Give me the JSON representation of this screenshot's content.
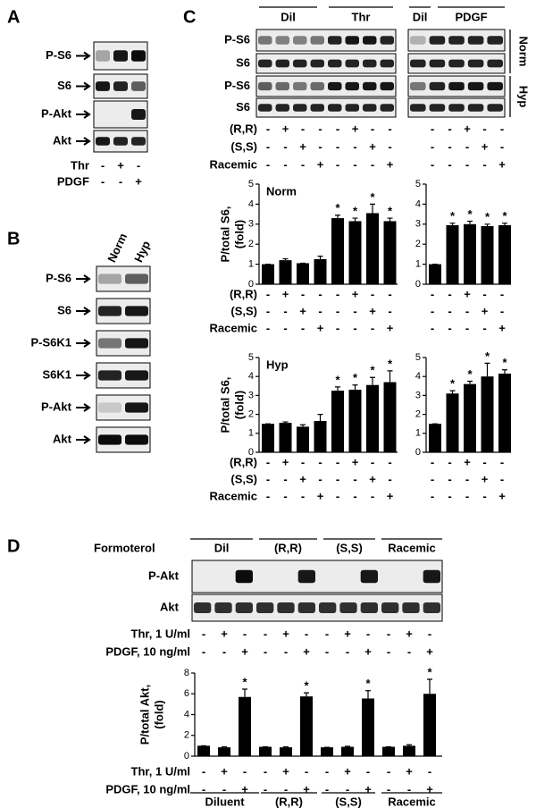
{
  "panel_a": {
    "letter": "A",
    "rows": [
      "P-S6",
      "S6",
      "P-Akt",
      "Akt"
    ],
    "treatments": [
      {
        "label": "Thr",
        "signs": [
          "-",
          "+",
          "-"
        ]
      },
      {
        "label": "PDGF",
        "signs": [
          "-",
          "-",
          "+"
        ]
      }
    ]
  },
  "panel_b": {
    "letter": "B",
    "columns": [
      "Norm",
      "Hyp"
    ],
    "rows": [
      "P-S6",
      "S6",
      "P-S6K1",
      "S6K1",
      "P-Akt",
      "Akt"
    ]
  },
  "panel_c": {
    "letter": "C",
    "groups": [
      "Dil",
      "Thr",
      "Dil",
      "PDGF"
    ],
    "rows": [
      "P-S6",
      "S6",
      "P-S6",
      "S6"
    ],
    "conditions": [
      "Norm",
      "Hyp"
    ],
    "sign_tables": [
      [
        {
          "label": "(R,R)",
          "signs": [
            "-",
            "+",
            "-",
            "-",
            "-",
            "+",
            "-",
            "-",
            "-",
            "-",
            "+",
            "-",
            "-"
          ]
        },
        {
          "label": "(S,S)",
          "signs": [
            "-",
            "-",
            "+",
            "-",
            "-",
            "-",
            "+",
            "-",
            "-",
            "-",
            "-",
            "+",
            "-"
          ]
        },
        {
          "label": "Racemic",
          "signs": [
            "-",
            "-",
            "-",
            "+",
            "-",
            "-",
            "-",
            "+",
            "-",
            "-",
            "-",
            "-",
            "+"
          ]
        }
      ],
      [
        {
          "label": "(R,R)",
          "signs": [
            "-",
            "+",
            "-",
            "-",
            "-",
            "+",
            "-",
            "-",
            "-",
            "-",
            "+",
            "-",
            "-"
          ]
        },
        {
          "label": "(S,S)",
          "signs": [
            "-",
            "-",
            "+",
            "-",
            "-",
            "-",
            "+",
            "-",
            "-",
            "-",
            "-",
            "+",
            "-"
          ]
        },
        {
          "label": "Racemic",
          "signs": [
            "-",
            "-",
            "-",
            "+",
            "-",
            "-",
            "-",
            "+",
            "-",
            "-",
            "-",
            "-",
            "+"
          ]
        }
      ],
      [
        {
          "label": "(R,R)",
          "signs": [
            "-",
            "+",
            "-",
            "-",
            "-",
            "+",
            "-",
            "-",
            "-",
            "-",
            "+",
            "-",
            "-"
          ]
        },
        {
          "label": "(S,S)",
          "signs": [
            "-",
            "-",
            "+",
            "-",
            "-",
            "-",
            "+",
            "-",
            "-",
            "-",
            "-",
            "+",
            "-"
          ]
        },
        {
          "label": "Racemic",
          "signs": [
            "-",
            "-",
            "-",
            "+",
            "-",
            "-",
            "-",
            "+",
            "-",
            "-",
            "-",
            "-",
            "+"
          ]
        }
      ]
    ]
  },
  "panel_d": {
    "letter": "D",
    "heading": "Formoterol",
    "groups": [
      "Dil",
      "(R,R)",
      "(S,S)",
      "Racemic"
    ],
    "rows": [
      "P-Akt",
      "Akt"
    ],
    "sign_tables": [
      [
        {
          "label": "Thr, 1 U/ml",
          "signs": [
            "-",
            "+",
            "-",
            "-",
            "+",
            "-",
            "-",
            "+",
            "-",
            "-",
            "+",
            "-"
          ]
        },
        {
          "label": "PDGF, 10 ng/ml",
          "signs": [
            "-",
            "-",
            "+",
            "-",
            "-",
            "+",
            "-",
            "-",
            "+",
            "-",
            "-",
            "+"
          ]
        }
      ],
      [
        {
          "label": "Thr, 1 U/ml",
          "signs": [
            "-",
            "+",
            "-",
            "-",
            "+",
            "-",
            "-",
            "+",
            "-",
            "-",
            "+",
            "-"
          ]
        },
        {
          "label": "PDGF, 10 ng/ml",
          "signs": [
            "-",
            "-",
            "+",
            "-",
            "-",
            "+",
            "-",
            "-",
            "+",
            "-",
            "-",
            "+"
          ]
        }
      ]
    ],
    "bottom_groups": [
      "Diluent",
      "(R,R)",
      "(S,S)",
      "Racemic"
    ]
  },
  "chart_data": [
    {
      "type": "bar",
      "title": "Norm",
      "ylabel": [
        "P/total S6,",
        "(fold)"
      ],
      "values": [
        1,
        1.2,
        1.05,
        1.25,
        3.3,
        3.15,
        3.55,
        3.15
      ],
      "errors": [
        0,
        0.07,
        0,
        0.15,
        0.15,
        0.15,
        0.45,
        0.15
      ],
      "ylim": [
        0,
        5
      ],
      "yticks": [
        0,
        1,
        2,
        3,
        4,
        5
      ],
      "color": "#000000",
      "marker": "*",
      "marked": [
        4,
        5,
        6,
        7
      ]
    },
    {
      "type": "bar",
      "values": [
        1,
        2.95,
        3.0,
        2.9,
        2.95
      ],
      "errors": [
        0,
        0.1,
        0.15,
        0.1,
        0.1
      ],
      "ylim": [
        0,
        5
      ],
      "yticks": [
        0,
        1,
        2,
        3,
        4,
        5
      ],
      "color": "#000000",
      "marker": "*",
      "marked": [
        1,
        2,
        3,
        4
      ]
    },
    {
      "type": "bar",
      "title": "Hyp",
      "ylabel": [
        "P/total S6,",
        "(fold)"
      ],
      "values": [
        1.5,
        1.55,
        1.35,
        1.65,
        3.25,
        3.3,
        3.55,
        3.7
      ],
      "errors": [
        0,
        0.05,
        0.1,
        0.35,
        0.2,
        0.25,
        0.4,
        0.6
      ],
      "ylim": [
        0,
        5
      ],
      "yticks": [
        0,
        1,
        2,
        3,
        4,
        5
      ],
      "color": "#000000",
      "marker": "*",
      "marked": [
        4,
        5,
        6,
        7
      ]
    },
    {
      "type": "bar",
      "values": [
        1.5,
        3.1,
        3.6,
        4.0,
        4.15
      ],
      "errors": [
        0,
        0.15,
        0.15,
        0.7,
        0.2
      ],
      "ylim": [
        0,
        5
      ],
      "yticks": [
        0,
        1,
        2,
        3,
        4,
        5
      ],
      "color": "#000000",
      "marker": "*",
      "marked": [
        1,
        2,
        3,
        4
      ]
    },
    {
      "type": "bar",
      "ylabel": [
        "P/total Akt,",
        "(fold)"
      ],
      "values": [
        1,
        0.85,
        5.7,
        0.9,
        0.85,
        5.75,
        0.85,
        0.9,
        5.55,
        0.9,
        1.0,
        6.0
      ],
      "errors": [
        0,
        0.05,
        0.75,
        0,
        0.05,
        0.35,
        0,
        0.05,
        0.75,
        0,
        0.1,
        1.4
      ],
      "ylim": [
        0,
        8
      ],
      "yticks": [
        0,
        2,
        4,
        6,
        8
      ],
      "color": "#000000",
      "marker": "*",
      "marked": [
        2,
        5,
        8,
        11
      ]
    }
  ]
}
